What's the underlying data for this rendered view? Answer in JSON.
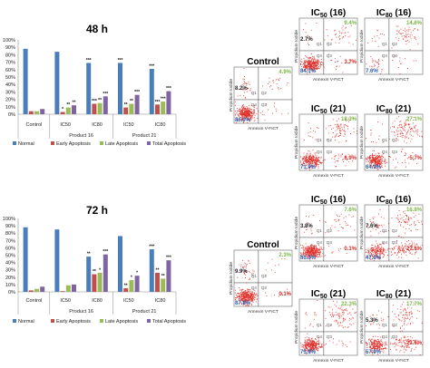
{
  "chart_data": [
    {
      "type": "bar",
      "title": "48 h",
      "categories": [
        "Control",
        "IC50",
        "IC80",
        "IC50",
        "IC80"
      ],
      "groups": [
        {
          "label": "Control",
          "categories": [
            "Control"
          ]
        },
        {
          "label": "Product 16",
          "categories": [
            "IC50",
            "IC80"
          ]
        },
        {
          "label": "Product 21",
          "categories": [
            "IC50",
            "IC80"
          ]
        }
      ],
      "ylim": [
        0,
        100
      ],
      "yticks": [
        "0%",
        "10%",
        "20%",
        "30%",
        "40%",
        "50%",
        "60%",
        "70%",
        "80%",
        "90%",
        "100%"
      ],
      "legend_position": "bottom",
      "series": [
        {
          "name": "Normal",
          "color": "#4a7ebb",
          "values": [
            88,
            84,
            69,
            69,
            61
          ],
          "labels": [
            "",
            "",
            "***",
            "***",
            "***"
          ]
        },
        {
          "name": "Early Apoptosis",
          "color": "#c0504d",
          "values": [
            4,
            3,
            14,
            9,
            13
          ],
          "labels": [
            "",
            "*",
            "***",
            "**",
            "***"
          ]
        },
        {
          "name": "Late Apoptosis",
          "color": "#9bbb59",
          "values": [
            4,
            9,
            15,
            14,
            17
          ],
          "labels": [
            "",
            "**",
            "**",
            "**",
            "***"
          ]
        },
        {
          "name": "Total Apoptosis",
          "color": "#8064a2",
          "values": [
            7,
            12,
            24,
            26,
            31
          ],
          "labels": [
            "",
            "**",
            "***",
            "***",
            "***"
          ]
        }
      ]
    },
    {
      "type": "bar",
      "title": "72 h",
      "categories": [
        "Control",
        "IC50",
        "IC80",
        "IC50",
        "IC80"
      ],
      "groups": [
        {
          "label": "Control",
          "categories": [
            "Control"
          ]
        },
        {
          "label": "Product 16",
          "categories": [
            "IC50",
            "IC80"
          ]
        },
        {
          "label": "Product 21",
          "categories": [
            "IC50",
            "IC80"
          ]
        }
      ],
      "ylim": [
        0,
        100
      ],
      "yticks": [
        "0%",
        "10%",
        "20%",
        "30%",
        "40%",
        "50%",
        "60%",
        "70%",
        "80%",
        "90%",
        "100%"
      ],
      "legend_position": "bottom",
      "series": [
        {
          "name": "Normal",
          "color": "#4a7ebb",
          "values": [
            88,
            85,
            48,
            76,
            58
          ],
          "labels": [
            "",
            "",
            "**",
            "",
            "***"
          ]
        },
        {
          "name": "Early Apoptosis",
          "color": "#c0504d",
          "values": [
            2,
            1,
            24,
            5,
            26
          ],
          "labels": [
            "",
            "",
            "**",
            "**",
            "**"
          ]
        },
        {
          "name": "Late Apoptosis",
          "color": "#9bbb59",
          "values": [
            4,
            9,
            26,
            16,
            18
          ],
          "labels": [
            "",
            "",
            "*",
            "*",
            "**"
          ]
        },
        {
          "name": "Total Apoptosis",
          "color": "#8064a2",
          "values": [
            7,
            10,
            51,
            22,
            43
          ],
          "labels": [
            "",
            "",
            "***",
            "*",
            "***"
          ]
        }
      ]
    },
    {
      "type": "scatter",
      "title": "48 h",
      "xlabel": "Annexin V-FICT",
      "ylabel": "Propidium Iodide",
      "quadrant_labels": [
        "Q1",
        "Q2",
        "Q3",
        "Q4"
      ],
      "panels": [
        {
          "name": "Control",
          "q1": "8.2%",
          "q2": "4.9%",
          "q3": "",
          "q4": "86.9%"
        },
        {
          "name": "IC50 (16)",
          "q1": "2.7%",
          "q2": "9.4%",
          "q3": "3.7%",
          "q4": "84.1%"
        },
        {
          "name": "IC80 (16)",
          "q1": "",
          "q2": "14.6%",
          "q3": "",
          "q4": "7.6%"
        },
        {
          "name": "IC50 (21)",
          "q1": "",
          "q2": "18.3%",
          "q3": "6.9%",
          "q4": "71.9%"
        },
        {
          "name": "IC80 (21)",
          "q1": "",
          "q2": "27.1%",
          "q3": "5.7%",
          "q4": "64.9%"
        }
      ]
    },
    {
      "type": "scatter",
      "title": "72 h",
      "xlabel": "Annexin V-FICT",
      "ylabel": "Propidium Iodide",
      "quadrant_labels": [
        "Q1",
        "Q2",
        "Q3",
        "Q4"
      ],
      "panels": [
        {
          "name": "Control",
          "q1": "9.9%",
          "q2": "2.3%",
          "q3": "0.1%",
          "q4": "87.8%"
        },
        {
          "name": "IC50 (16)",
          "q1": "3.8%",
          "q2": "7.6%",
          "q3": "0.1%",
          "q4": "85.3%"
        },
        {
          "name": "IC80 (16)",
          "q1": "7.6%",
          "q2": "16.8%",
          "q3": "27.6%",
          "q4": "47.9%"
        },
        {
          "name": "IC50 (21)",
          "q1": "",
          "q2": "22.3%",
          "q3": "",
          "q4": "75.9%"
        },
        {
          "name": "IC80 (21)",
          "q1": "5.3%",
          "q2": "17.7%",
          "q3": "23.6%",
          "q4": "57.9%"
        }
      ]
    }
  ],
  "legend": {
    "normal": "Normal",
    "early": "Early Apoptosis",
    "late": "Late Apoptosis",
    "total": "Total Apoptosis"
  }
}
